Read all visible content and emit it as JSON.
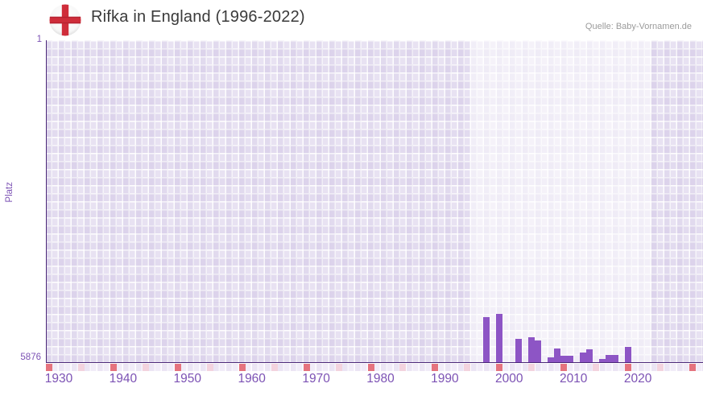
{
  "header": {
    "title": "Rifka in England (1996-2022)",
    "source": "Quelle: Baby-Vornamen.de"
  },
  "chart_data": {
    "type": "bar",
    "title": "Rifka in England (1996-2022)",
    "xlabel": "",
    "ylabel": "Platz",
    "grid": "on",
    "legend": "none",
    "y_axis": {
      "top_label": "1",
      "bottom_label": "5876",
      "min": 1,
      "max": 5876,
      "inverted": true
    },
    "x_axis": {
      "tick_years": [
        1930,
        1940,
        1950,
        1960,
        1970,
        1980,
        1990,
        2000,
        2010,
        2020
      ],
      "start_year": 1928,
      "end_year": 2030
    },
    "series": [
      {
        "name": "Platz von Rifka",
        "points": [
          {
            "year": 1996,
            "platz": 5053
          },
          {
            "year": 1998,
            "platz": 5000
          },
          {
            "year": 2001,
            "platz": 5446
          },
          {
            "year": 2003,
            "platz": 5420
          },
          {
            "year": 2004,
            "platz": 5479
          },
          {
            "year": 2006,
            "platz": 5788
          },
          {
            "year": 2007,
            "platz": 5622
          },
          {
            "year": 2008,
            "platz": 5754
          },
          {
            "year": 2009,
            "platz": 5754
          },
          {
            "year": 2011,
            "platz": 5696
          },
          {
            "year": 2012,
            "platz": 5646
          },
          {
            "year": 2014,
            "platz": 5822
          },
          {
            "year": 2015,
            "platz": 5748
          },
          {
            "year": 2016,
            "platz": 5748
          },
          {
            "year": 2018,
            "platz": 5592
          }
        ]
      }
    ],
    "highlight_band_years": [
      1994,
      2022
    ],
    "minor_tick_years_red": [
      1928,
      1938,
      1948,
      1958,
      1968,
      1978,
      1988,
      1998,
      2008,
      2018,
      2028
    ],
    "minor_tick_years_pink": [
      1933,
      1943,
      1953,
      1963,
      1973,
      1983,
      1993,
      2003,
      2013,
      2023
    ],
    "colors": {
      "bar": "#8d55c5",
      "axis": "#4b2878",
      "tick_text": "#7c52b4",
      "title_text": "#3a3a3a",
      "source_text": "#9b9b9b",
      "plot_background": "#e8e2f2",
      "marker_red": "#e5737e",
      "marker_pink": "#f3d3de",
      "flag_cross_red": "#cf2d3a"
    }
  }
}
